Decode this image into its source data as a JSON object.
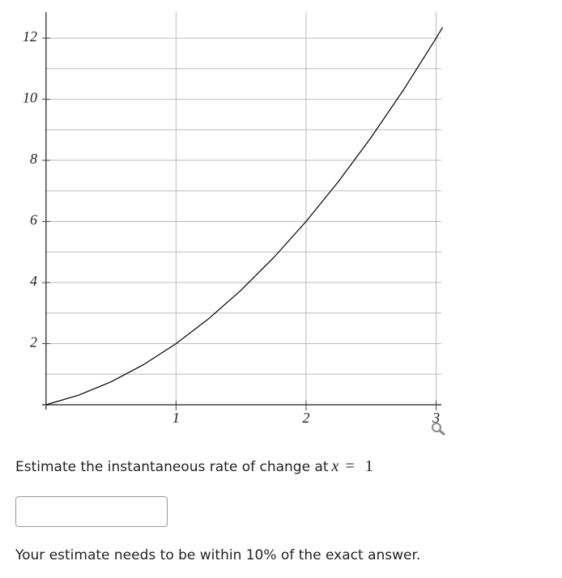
{
  "chart_data": {
    "type": "line",
    "x": [
      0,
      0.25,
      0.5,
      0.75,
      1,
      1.25,
      1.5,
      1.75,
      2,
      2.25,
      2.5,
      2.75,
      3,
      3.05
    ],
    "series": [
      {
        "color": "#000000",
        "values": [
          0,
          0.3125,
          0.75,
          1.3125,
          2,
          2.8125,
          3.75,
          4.8125,
          6,
          7.3125,
          8.75,
          10.3125,
          12,
          12.3525
        ]
      }
    ],
    "xlim": [
      -0.03,
      3.04
    ],
    "ylim": [
      0,
      12.85
    ],
    "xticks": [
      1,
      2,
      3
    ],
    "yticks": [
      2,
      4,
      6,
      8,
      10,
      12
    ],
    "y_minor_ticks": [
      1,
      3,
      5,
      7,
      9,
      11
    ],
    "grid": true
  },
  "question": {
    "prompt": "Estimate the instantaneous rate of change at",
    "math_variable": "x",
    "math_rest": "= 1"
  },
  "note": "Your estimate needs to be within 10% of the exact answer."
}
